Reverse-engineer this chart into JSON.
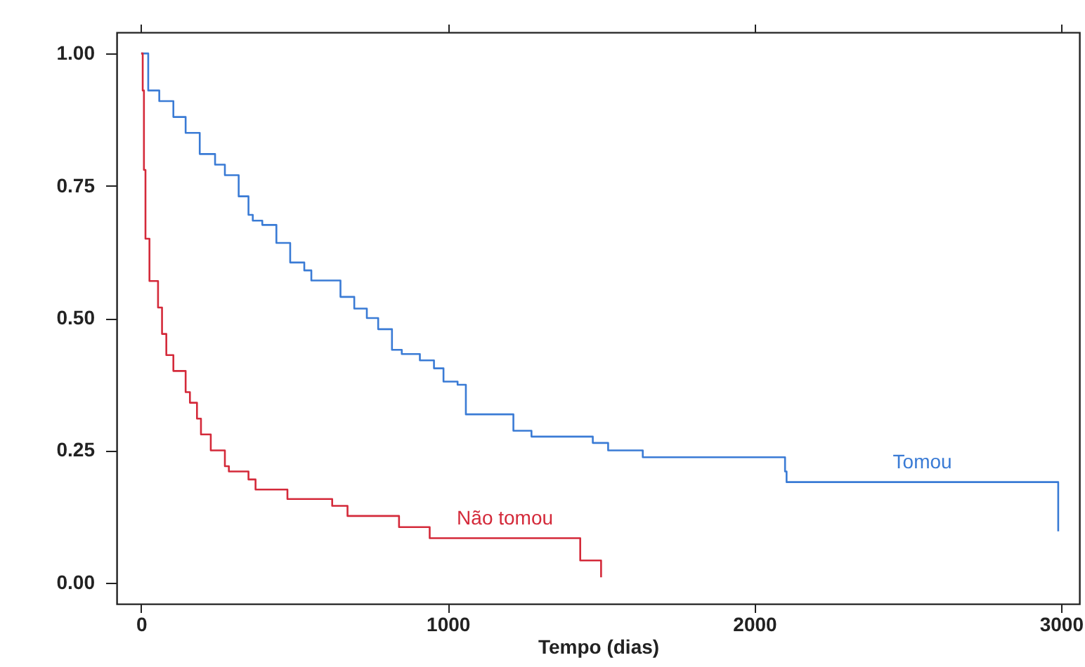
{
  "chart_data": {
    "type": "step",
    "xlabel": "Tempo (dias)",
    "xlim": [
      -80,
      3060
    ],
    "xticks": [
      0,
      1000,
      2000,
      3000
    ],
    "ylim": [
      -0.04,
      1.04
    ],
    "yticks": [
      {
        "value": 0,
        "label": "0.00"
      },
      {
        "value": 0.25,
        "label": "0.25"
      },
      {
        "value": 0.5,
        "label": "0.50"
      },
      {
        "value": 0.75,
        "label": "0.75"
      },
      {
        "value": 1,
        "label": "1.00"
      }
    ],
    "series": [
      {
        "name": "Tomou",
        "color": "#3a7bd5",
        "x": [
          0,
          23,
          59,
          105,
          145,
          191,
          241,
          273,
          318,
          350,
          364,
          395,
          441,
          486,
          532,
          555,
          650,
          695,
          736,
          773,
          818,
          850,
          909,
          955,
          986,
          1032,
          1059,
          1214,
          1273,
          1473,
          1523,
          1636,
          2100,
          2105,
          2991
        ],
        "values": [
          1.0,
          0.93,
          0.91,
          0.88,
          0.85,
          0.81,
          0.79,
          0.77,
          0.73,
          0.695,
          0.684,
          0.676,
          0.642,
          0.605,
          0.59,
          0.571,
          0.54,
          0.518,
          0.5,
          0.479,
          0.44,
          0.432,
          0.42,
          0.405,
          0.38,
          0.374,
          0.318,
          0.287,
          0.276,
          0.264,
          0.25,
          0.237,
          0.21,
          0.19,
          0.097
        ]
      },
      {
        "name": "Não tomou",
        "color": "#d42a3a",
        "x": [
          0,
          5,
          9,
          14,
          27,
          55,
          68,
          82,
          105,
          145,
          159,
          182,
          195,
          227,
          273,
          286,
          350,
          373,
          477,
          623,
          673,
          841,
          941,
          1432,
          1500
        ],
        "values": [
          1.0,
          0.93,
          0.78,
          0.65,
          0.57,
          0.52,
          0.47,
          0.43,
          0.4,
          0.36,
          0.34,
          0.31,
          0.28,
          0.25,
          0.22,
          0.21,
          0.195,
          0.176,
          0.158,
          0.145,
          0.126,
          0.105,
          0.084,
          0.042,
          0.01
        ]
      }
    ]
  }
}
